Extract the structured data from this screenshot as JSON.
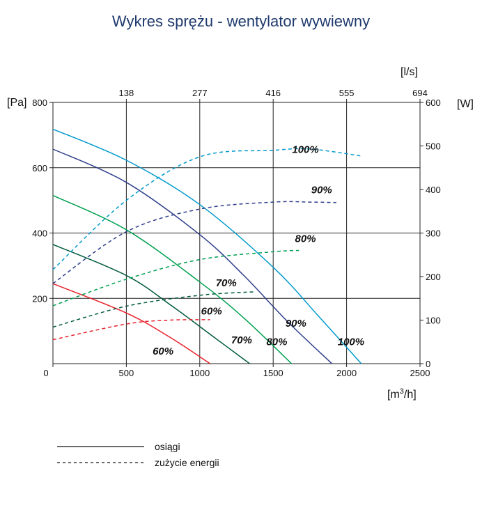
{
  "chart_data": {
    "type": "line",
    "title": "Wykres sprężu - wentylator wywiewny",
    "x_axis": {
      "unit": "[m3/h]",
      "unit_main": "[m",
      "unit_sup": "3",
      "unit_tail": "/h]",
      "range": [
        0,
        2500
      ],
      "ticks": [
        0,
        500,
        1000,
        1500,
        2000,
        2500
      ]
    },
    "x2_axis": {
      "unit": "[l/s]",
      "ticks": [
        "138",
        "277",
        "416",
        "555",
        "694"
      ],
      "tick_positions_m3h": [
        500,
        1000,
        1500,
        2000,
        2500
      ]
    },
    "y_axis": {
      "unit": "[Pa]",
      "range": [
        0,
        800
      ],
      "ticks": [
        200,
        400,
        600,
        800
      ]
    },
    "y2_axis": {
      "unit": "[W]",
      "range": [
        0,
        600
      ],
      "ticks": [
        0,
        100,
        200,
        300,
        400,
        500,
        600
      ]
    },
    "grid": true,
    "legend": {
      "placement": "bottom-left",
      "entries": [
        {
          "style": "solid",
          "label": "osiągi"
        },
        {
          "style": "dashed",
          "label": "zużycie energii"
        }
      ]
    },
    "series": [
      {
        "kind": "performance",
        "label": "100%",
        "color": "#0099cc",
        "axis": "y",
        "x": [
          0,
          500,
          1000,
          1500,
          1800,
          2100
        ],
        "y": [
          718,
          623,
          487,
          295,
          150,
          0
        ]
      },
      {
        "kind": "performance",
        "label": "90%",
        "color": "#2e3e8a",
        "axis": "y",
        "x": [
          0,
          500,
          1000,
          1300,
          1600,
          1900
        ],
        "y": [
          657,
          555,
          395,
          270,
          128,
          0
        ]
      },
      {
        "kind": "performance",
        "label": "80%",
        "color": "#00a050",
        "axis": "y",
        "x": [
          0,
          500,
          1000,
          1300,
          1625
        ],
        "y": [
          515,
          410,
          250,
          140,
          0
        ]
      },
      {
        "kind": "performance",
        "label": "70%",
        "color": "#005a3c",
        "axis": "y",
        "x": [
          0,
          500,
          800,
          1100,
          1340
        ],
        "y": [
          365,
          270,
          180,
          80,
          0
        ]
      },
      {
        "kind": "performance",
        "label": "60%",
        "color": "#e8202a",
        "axis": "y",
        "x": [
          0,
          500,
          800,
          1070
        ],
        "y": [
          245,
          155,
          80,
          0
        ]
      },
      {
        "kind": "energy",
        "label": "100%",
        "color": "#0099cc",
        "axis": "y2",
        "x": [
          0,
          500,
          1000,
          1500,
          1750,
          2100
        ],
        "y": [
          216,
          375,
          475,
          490,
          493,
          477
        ]
      },
      {
        "kind": "energy",
        "label": "90%",
        "color": "#2e3e8a",
        "axis": "y2",
        "x": [
          0,
          500,
          1000,
          1500,
          1750,
          1930
        ],
        "y": [
          184,
          303,
          355,
          371,
          371,
          370
        ]
      },
      {
        "kind": "energy",
        "label": "80%",
        "color": "#00a050",
        "axis": "y2",
        "x": [
          0,
          500,
          1000,
          1500,
          1675
        ],
        "y": [
          133,
          194,
          239,
          257,
          260
        ]
      },
      {
        "kind": "energy",
        "label": "70%",
        "color": "#005a3c",
        "axis": "y2",
        "x": [
          0,
          500,
          1000,
          1375
        ],
        "y": [
          84,
          132,
          157,
          165
        ]
      },
      {
        "kind": "energy",
        "label": "60%",
        "color": "#e8202a",
        "axis": "y2",
        "x": [
          0,
          500,
          800,
          1070
        ],
        "y": [
          55,
          91,
          100,
          101
        ]
      }
    ],
    "annotations": [
      {
        "text": "100%",
        "x": 1720,
        "y": 645
      },
      {
        "text": "90%",
        "x": 1830,
        "y": 522
      },
      {
        "text": "80%",
        "x": 1720,
        "y": 372
      },
      {
        "text": "70%",
        "x": 1180,
        "y": 237
      },
      {
        "text": "60%",
        "x": 1080,
        "y": 150
      },
      {
        "text": "90%",
        "x": 1655,
        "y": 113
      },
      {
        "text": "100%",
        "x": 2030,
        "y": 57
      },
      {
        "text": "80%",
        "x": 1525,
        "y": 57
      },
      {
        "text": "70%",
        "x": 1285,
        "y": 62
      },
      {
        "text": "60%",
        "x": 750,
        "y": 28
      }
    ]
  }
}
